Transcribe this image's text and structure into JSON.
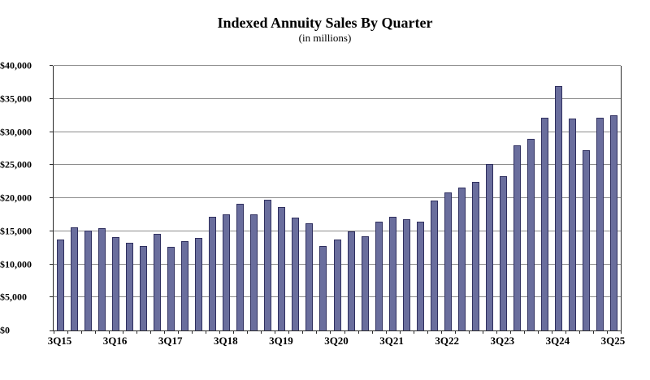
{
  "chart_data": {
    "type": "bar",
    "title": "Indexed Annuity Sales By Quarter",
    "subtitle": "(in millions)",
    "xlabel": "",
    "ylabel": "",
    "ylim": [
      0,
      40000
    ],
    "ytick_step": 5000,
    "grid": true,
    "legend": "none",
    "y_tick_labels": [
      "$0",
      "$5,000",
      "$10,000",
      "$15,000",
      "$20,000",
      "$25,000",
      "$30,000",
      "$35,000",
      "$40,000"
    ],
    "x_tick_labels": [
      "3Q15",
      "3Q16",
      "3Q17",
      "3Q18",
      "3Q19",
      "3Q20",
      "3Q21",
      "3Q22",
      "3Q23",
      "3Q24",
      "3Q25"
    ],
    "x_label_every": 4,
    "categories": [
      "3Q15",
      "4Q15",
      "1Q16",
      "2Q16",
      "3Q16",
      "4Q16",
      "1Q17",
      "2Q17",
      "3Q17",
      "4Q17",
      "1Q18",
      "2Q18",
      "3Q18",
      "4Q18",
      "1Q19",
      "2Q19",
      "3Q19",
      "4Q19",
      "1Q20",
      "2Q20",
      "3Q20",
      "4Q20",
      "1Q21",
      "2Q21",
      "3Q21",
      "4Q21",
      "1Q22",
      "2Q22",
      "3Q22",
      "4Q22",
      "1Q23",
      "2Q23",
      "3Q23",
      "4Q23",
      "1Q24",
      "2Q24",
      "3Q24",
      "4Q24",
      "1Q25",
      "2Q25",
      "3Q25"
    ],
    "values": [
      13800,
      15600,
      15100,
      15400,
      14100,
      13200,
      12700,
      14600,
      12600,
      13500,
      14000,
      17200,
      17500,
      19200,
      17600,
      19700,
      18600,
      17000,
      16200,
      12800,
      13800,
      15000,
      14200,
      16500,
      17200,
      16800,
      16500,
      19600,
      20900,
      21600,
      22500,
      25200,
      23300,
      28000,
      29000,
      32100,
      36900,
      32000,
      27200,
      32200,
      32500
    ],
    "colors": {
      "bar_fill": "#6a6e9d",
      "bar_border": "#2f2f5f",
      "gridline": "#8c8c8c",
      "axis": "#2b2b2b",
      "background": "#ffffff",
      "text": "#000000"
    }
  }
}
